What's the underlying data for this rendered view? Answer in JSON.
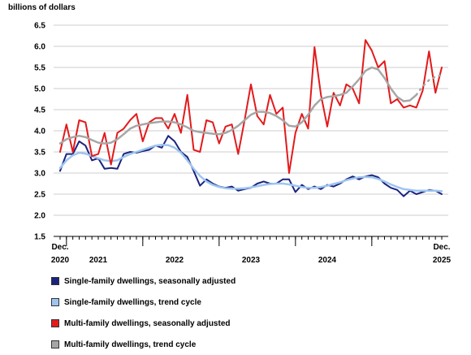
{
  "chart_data": {
    "type": "line",
    "ylabel": "billions of dollars",
    "ylim": [
      1.5,
      6.5
    ],
    "yticks": [
      "6.5",
      "6.0",
      "5.5",
      "5.0",
      "4.5",
      "4.0",
      "3.5",
      "3.0",
      "2.5",
      "2.0",
      "1.5"
    ],
    "grid": "horizontal",
    "x_start": "Dec. 2020",
    "x_end": "Dec. 2025",
    "x_labels": [
      {
        "index": 0,
        "line1": "Dec.",
        "line2": "2020"
      },
      {
        "index": 6,
        "line1": "",
        "line2": "2021"
      },
      {
        "index": 18,
        "line1": "",
        "line2": "2022"
      },
      {
        "index": 30,
        "line1": "",
        "line2": "2023"
      },
      {
        "index": 42,
        "line1": "",
        "line2": "2024"
      },
      {
        "index": 60,
        "line1": "Dec.",
        "line2": "2025"
      }
    ],
    "year_ticks": [
      1,
      13,
      25,
      37,
      49
    ],
    "legend_placement": "bottom",
    "series": [
      {
        "name": "Single-family dwellings, seasonally adjusted",
        "color": "#1a237e",
        "width": 2,
        "dash": "",
        "values": [
          3.05,
          3.45,
          3.45,
          3.75,
          3.65,
          3.3,
          3.35,
          3.1,
          3.12,
          3.1,
          3.45,
          3.5,
          3.48,
          3.52,
          3.55,
          3.65,
          3.6,
          3.88,
          3.75,
          3.5,
          3.38,
          3.05,
          2.7,
          2.85,
          2.75,
          2.68,
          2.65,
          2.68,
          2.58,
          2.62,
          2.65,
          2.75,
          2.8,
          2.75,
          2.75,
          2.85,
          2.85,
          2.55,
          2.72,
          2.62,
          2.68,
          2.62,
          2.72,
          2.68,
          2.75,
          2.85,
          2.92,
          2.85,
          2.92,
          2.95,
          2.9,
          2.75,
          2.65,
          2.6,
          2.45,
          2.58,
          2.5,
          2.55,
          2.6,
          2.58,
          2.5
        ]
      },
      {
        "name": "Single-family dwellings, trend cycle",
        "color": "#9ec5f0",
        "width": 2.5,
        "dash": "",
        "values": [
          3.12,
          3.3,
          3.42,
          3.48,
          3.46,
          3.4,
          3.35,
          3.3,
          3.28,
          3.3,
          3.38,
          3.45,
          3.5,
          3.55,
          3.6,
          3.65,
          3.67,
          3.66,
          3.6,
          3.48,
          3.3,
          3.1,
          2.93,
          2.8,
          2.72,
          2.67,
          2.64,
          2.63,
          2.63,
          2.64,
          2.66,
          2.69,
          2.72,
          2.74,
          2.75,
          2.75,
          2.73,
          2.7,
          2.67,
          2.65,
          2.65,
          2.67,
          2.7,
          2.74,
          2.78,
          2.83,
          2.87,
          2.9,
          2.91,
          2.9,
          2.86,
          2.8,
          2.73,
          2.67,
          2.62,
          2.6,
          2.58,
          2.58,
          2.58,
          2.58,
          2.57
        ]
      },
      {
        "name": "Multi-family dwellings, seasonally adjusted",
        "color": "#e31a1c",
        "width": 2,
        "dash": "",
        "values": [
          3.5,
          4.15,
          3.5,
          4.25,
          4.2,
          3.4,
          3.45,
          3.95,
          3.2,
          3.95,
          4.05,
          4.25,
          4.4,
          3.75,
          4.2,
          4.3,
          4.3,
          4.05,
          4.4,
          3.95,
          4.85,
          3.55,
          3.5,
          4.25,
          4.2,
          3.7,
          4.1,
          4.15,
          3.45,
          4.25,
          5.1,
          4.35,
          4.15,
          4.85,
          4.4,
          4.55,
          3.0,
          3.95,
          4.4,
          4.05,
          5.98,
          4.85,
          4.1,
          4.9,
          4.6,
          5.1,
          5.0,
          4.65,
          6.15,
          5.9,
          5.5,
          5.65,
          4.65,
          4.75,
          4.55,
          4.6,
          4.55,
          4.95,
          5.88,
          4.9,
          5.5
        ]
      },
      {
        "name": "Multi-family dwellings, trend cycle",
        "color": "#a6a6a6",
        "width": 2.5,
        "dash": "",
        "values": [
          3.7,
          3.8,
          3.85,
          3.88,
          3.85,
          3.78,
          3.72,
          3.7,
          3.72,
          3.8,
          3.92,
          4.05,
          4.12,
          4.15,
          4.18,
          4.2,
          4.22,
          4.22,
          4.2,
          4.15,
          4.08,
          4.0,
          3.97,
          3.95,
          3.93,
          3.92,
          3.95,
          4.02,
          4.12,
          4.25,
          4.38,
          4.45,
          4.45,
          4.42,
          4.35,
          4.25,
          4.12,
          4.1,
          4.2,
          4.38,
          4.6,
          4.75,
          4.8,
          4.82,
          4.85,
          4.9,
          5.05,
          5.22,
          5.42,
          5.5,
          5.45,
          5.25,
          5.0,
          4.8,
          4.7,
          4.72,
          4.85,
          null,
          null,
          null,
          null
        ]
      },
      {
        "name": "",
        "color": "#a6a6a6",
        "width": 2.5,
        "dash": "1.5,6",
        "legend": false,
        "values": [
          null,
          null,
          null,
          null,
          null,
          null,
          null,
          null,
          null,
          null,
          null,
          null,
          null,
          null,
          null,
          null,
          null,
          null,
          null,
          null,
          null,
          null,
          null,
          null,
          null,
          null,
          null,
          null,
          null,
          null,
          null,
          null,
          null,
          null,
          null,
          null,
          null,
          null,
          null,
          null,
          null,
          null,
          null,
          null,
          null,
          null,
          null,
          null,
          null,
          null,
          null,
          null,
          null,
          null,
          null,
          null,
          4.85,
          5.05,
          5.2,
          5.28,
          5.32
        ]
      }
    ]
  },
  "legend": [
    {
      "label": "Single-family dwellings, seasonally adjusted",
      "color": "#1a237e"
    },
    {
      "label": "Single-family dwellings, trend cycle",
      "color": "#9ec5f0"
    },
    {
      "label": "Multi-family dwellings, seasonally adjusted",
      "color": "#e31a1c"
    },
    {
      "label": "Multi-family dwellings, trend cycle",
      "color": "#a6a6a6"
    }
  ]
}
